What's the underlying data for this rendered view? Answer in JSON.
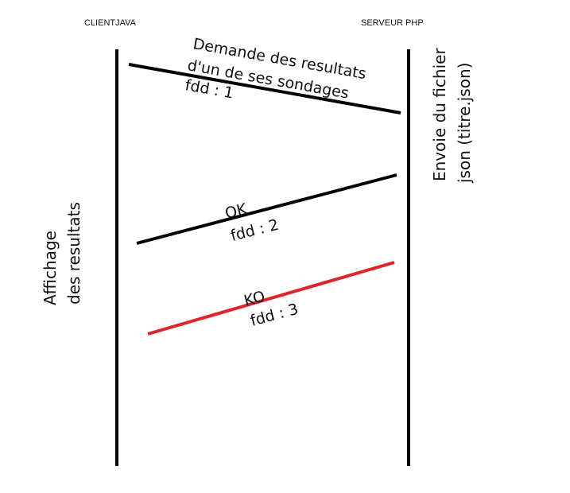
{
  "participants": {
    "client": "CLIENTJAVA",
    "server": "SERVEUR PHP"
  },
  "messages": [
    {
      "title": "Demande des resultats",
      "title2": "d'un de ses sondages",
      "fdd": "fdd : 1",
      "color": "#000000"
    },
    {
      "title": "OK",
      "fdd": "fdd : 2",
      "color": "#000000"
    },
    {
      "title": "KO",
      "fdd": "fdd : 3",
      "color": "#e0242b"
    }
  ],
  "notes": {
    "client_line1": "Affichage",
    "client_line2": "des resultats",
    "server_line1": "Envoie du fichier",
    "server_line2": "json (titre.json)"
  },
  "colors": {
    "lifeline": "#000000",
    "ok_arrow": "#000000",
    "ko_arrow": "#e0242b"
  }
}
